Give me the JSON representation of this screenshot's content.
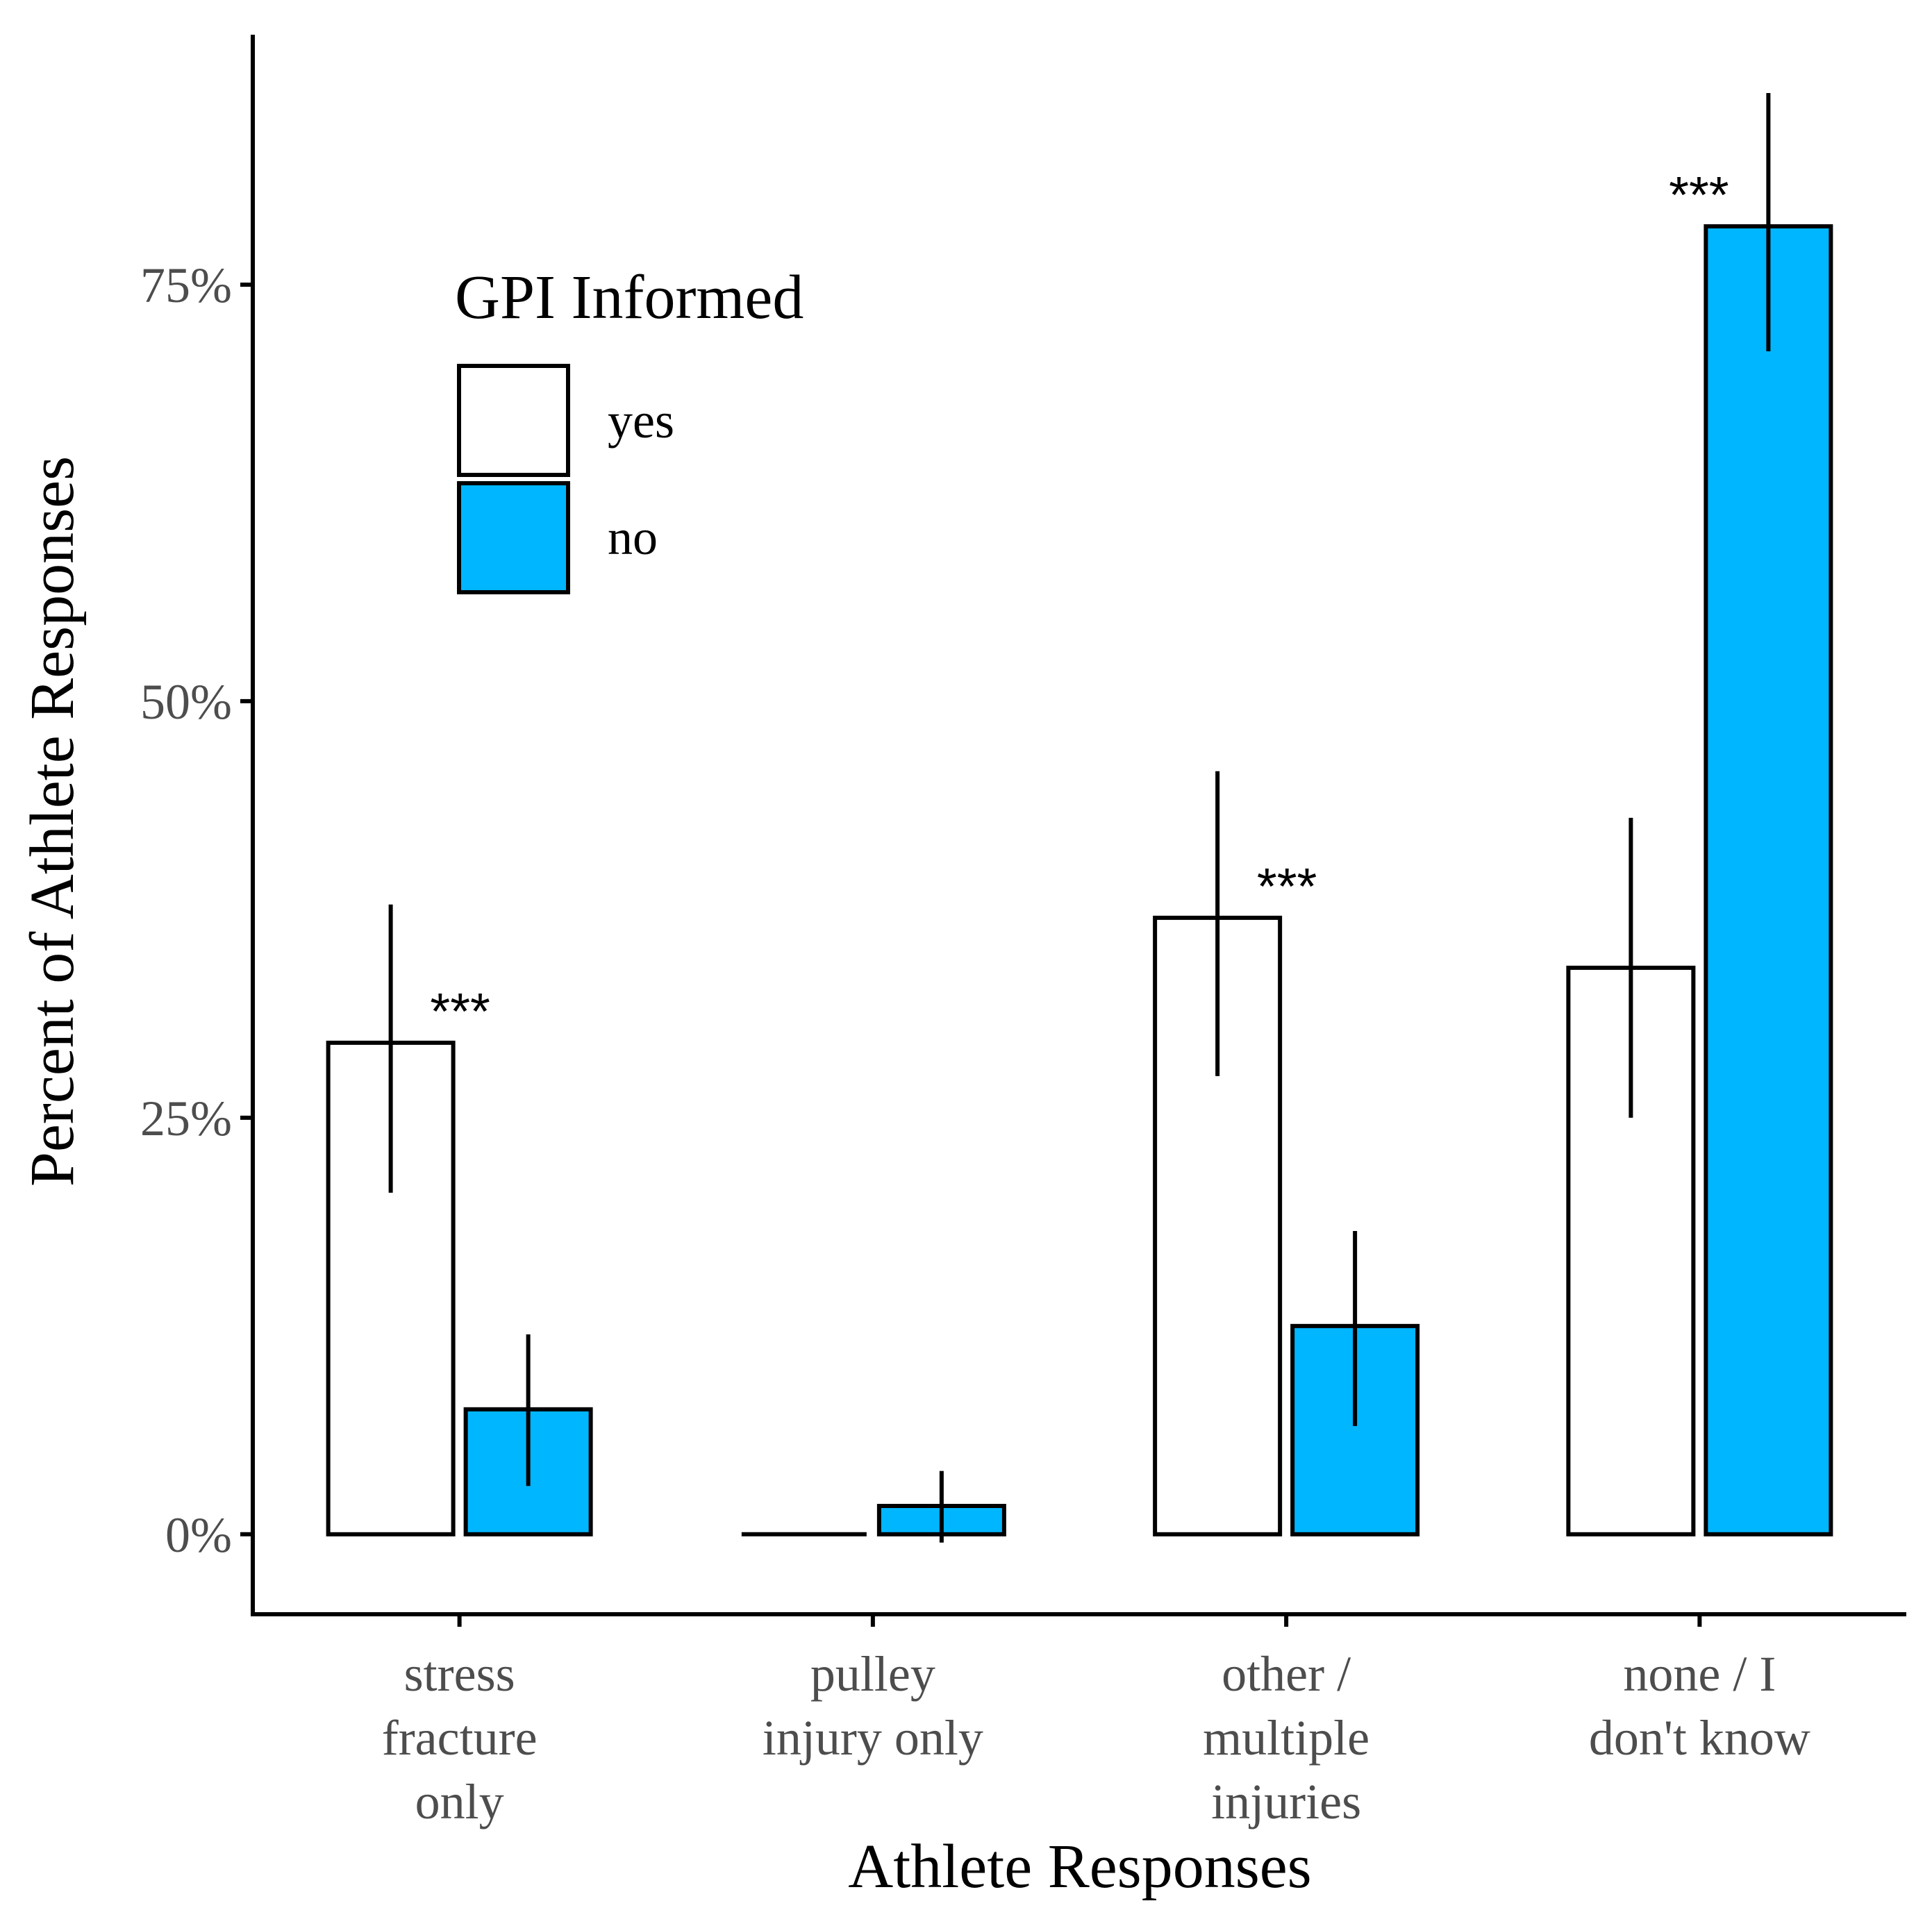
{
  "chart_data": {
    "type": "bar",
    "xlabel": "Athlete Responses",
    "ylabel": "Percent of Athlete Responses",
    "ylim": [
      -4.8,
      90
    ],
    "yticks": [
      0,
      25,
      50,
      75
    ],
    "ytick_labels": [
      "0%",
      "25%",
      "50%",
      "75%"
    ],
    "categories": [
      [
        "stress",
        "fracture",
        "only"
      ],
      [
        "pulley",
        "injury only"
      ],
      [
        "other /",
        "multiple",
        "injuries"
      ],
      [
        "none / I",
        "don't know"
      ]
    ],
    "legend": {
      "title": "GPI Informed",
      "position": "top-left"
    },
    "series": [
      {
        "name": "yes",
        "color": "#ffffff",
        "values": [
          29.5,
          0,
          37,
          34
        ],
        "ci_low": [
          20.5,
          0,
          27.5,
          25
        ],
        "ci_high": [
          37.8,
          0,
          45.8,
          43
        ]
      },
      {
        "name": "no",
        "color": "#00b6ff",
        "values": [
          7.5,
          1.7,
          12.5,
          78.5
        ],
        "ci_low": [
          2.9,
          -0.5,
          6.5,
          71
        ],
        "ci_high": [
          12,
          3.8,
          18.2,
          86.5
        ]
      }
    ],
    "significance": [
      {
        "category_index": 0,
        "label": "***"
      },
      {
        "category_index": 2,
        "label": "***"
      },
      {
        "category_index": 3,
        "label": "***"
      }
    ],
    "grid": false
  }
}
